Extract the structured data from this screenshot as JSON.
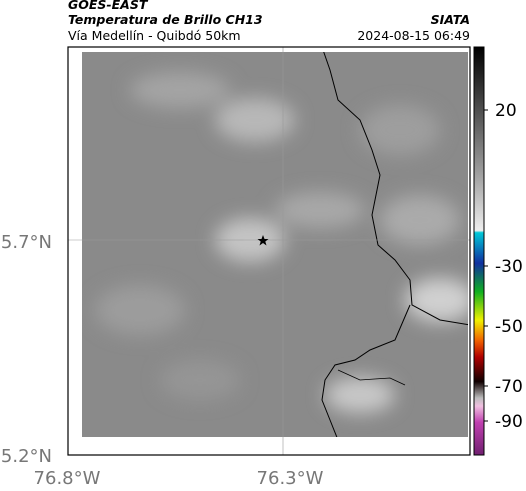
{
  "header": {
    "source": "GOES-EAST",
    "title": "Temperatura de Brillo CH13",
    "subtitle": "Vía Medellín - Quibdó 50km",
    "agency": "SIATA",
    "datetime": "2024-08-15 06:49"
  },
  "map": {
    "lat_labels": [
      "5.7°N",
      "5.2°N"
    ],
    "lon_labels": [
      "76.8°W",
      "76.3°W"
    ]
  },
  "colorbar": {
    "tick_labels": [
      "20",
      "-30",
      "-50",
      "-70",
      "-90"
    ]
  }
}
